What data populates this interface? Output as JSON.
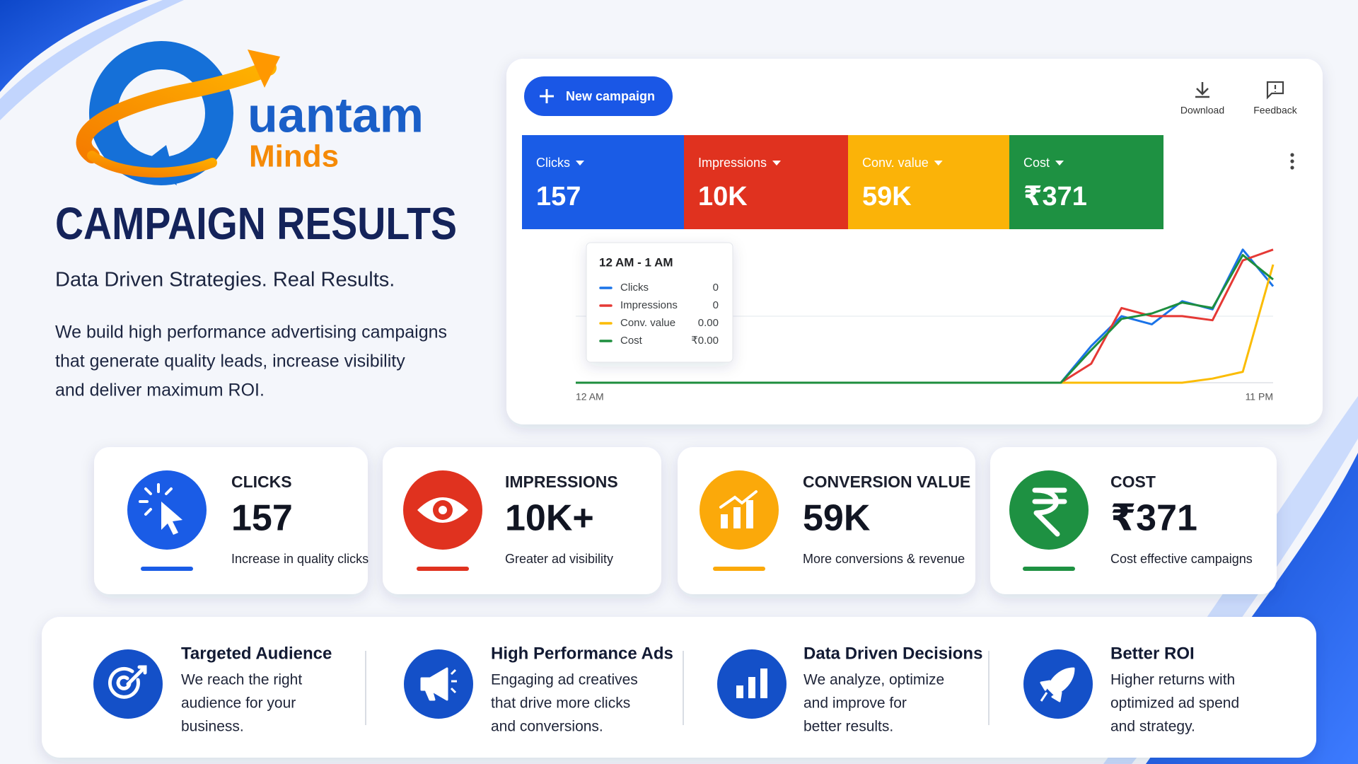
{
  "brand": {
    "name": "uantam",
    "sub": "Minds"
  },
  "hero": {
    "title": "CAMPAIGN RESULTS",
    "tagline": "Data Driven Strategies. Real Results.",
    "description": [
      "We build high performance advertising campaigns",
      "that generate quality leads, increase visibility",
      "and deliver maximum ROI."
    ]
  },
  "dashboard": {
    "new_campaign": "New campaign",
    "actions": [
      "Download",
      "Feedback"
    ],
    "metrics": [
      {
        "label": "Clicks",
        "value": "157",
        "color": "#1a5ce6"
      },
      {
        "label": "Impressions",
        "value": "10K",
        "color": "#e0321f"
      },
      {
        "label": "Conv. value",
        "value": "59K",
        "color": "#fbb308"
      },
      {
        "label": "Cost",
        "value": "₹371",
        "color": "#1e9142"
      }
    ],
    "tooltip": {
      "title": "12 AM - 1 AM",
      "rows": [
        {
          "label": "Clicks",
          "value": "0"
        },
        {
          "label": "Impressions",
          "value": "0"
        },
        {
          "label": "Conv. value",
          "value": "0.00"
        },
        {
          "label": "Cost",
          "value": "₹0.00"
        }
      ]
    }
  },
  "chart_data": {
    "type": "line",
    "categories": [
      "12 AM",
      null,
      null,
      null,
      null,
      null,
      null,
      null,
      null,
      null,
      null,
      null,
      null,
      null,
      null,
      null,
      null,
      null,
      null,
      null,
      null,
      null,
      null,
      "11 PM"
    ],
    "ylim": [
      0,
      100
    ],
    "series": [
      {
        "name": "Clicks",
        "color": "#1a73e8",
        "values": [
          0,
          0,
          0,
          0,
          0,
          0,
          0,
          0,
          0,
          0,
          0,
          0,
          0,
          0,
          0,
          0,
          0,
          27,
          49,
          43,
          60,
          54,
          98,
          71
        ]
      },
      {
        "name": "Impressions",
        "color": "#e53935",
        "values": [
          0,
          0,
          0,
          0,
          0,
          0,
          0,
          0,
          0,
          0,
          0,
          0,
          0,
          0,
          0,
          0,
          0,
          14,
          55,
          49,
          49,
          46,
          90,
          98
        ]
      },
      {
        "name": "Conv. value",
        "color": "#fbbc04",
        "values": [
          0,
          0,
          0,
          0,
          0,
          0,
          0,
          0,
          0,
          0,
          0,
          0,
          0,
          0,
          0,
          0,
          0,
          0,
          0,
          0,
          0,
          3,
          8,
          87
        ]
      },
      {
        "name": "Cost",
        "color": "#1e8e3e",
        "values": [
          0,
          0,
          0,
          0,
          0,
          0,
          0,
          0,
          0,
          0,
          0,
          0,
          0,
          0,
          0,
          0,
          0,
          24,
          47,
          51,
          59,
          55,
          94,
          76
        ]
      }
    ]
  },
  "stats": [
    {
      "label": "CLICKS",
      "value": "157",
      "caption": "Increase in quality clicks",
      "color": "#1a5ce6"
    },
    {
      "label": "IMPRESSIONS",
      "value": "10K+",
      "caption": "Greater ad visibility",
      "color": "#e0321f"
    },
    {
      "label": "CONVERSION VALUE",
      "value": "59K",
      "caption": "More conversions & revenue",
      "color": "#fba90a"
    },
    {
      "label": "COST",
      "value": "₹371",
      "caption": "Cost effective campaigns",
      "color": "#1e9142"
    }
  ],
  "features": [
    {
      "title": "Targeted Audience",
      "lines": [
        "We reach the right",
        "audience for your",
        "business."
      ]
    },
    {
      "title": "High Performance Ads",
      "lines": [
        "Engaging ad creatives",
        "that drive more clicks",
        "and conversions."
      ]
    },
    {
      "title": "Data Driven Decisions",
      "lines": [
        "We analyze, optimize",
        "and improve for",
        "better results."
      ]
    },
    {
      "title": "Better ROI",
      "lines": [
        "Higher returns with",
        "optimized ad spend",
        "and strategy."
      ]
    }
  ]
}
